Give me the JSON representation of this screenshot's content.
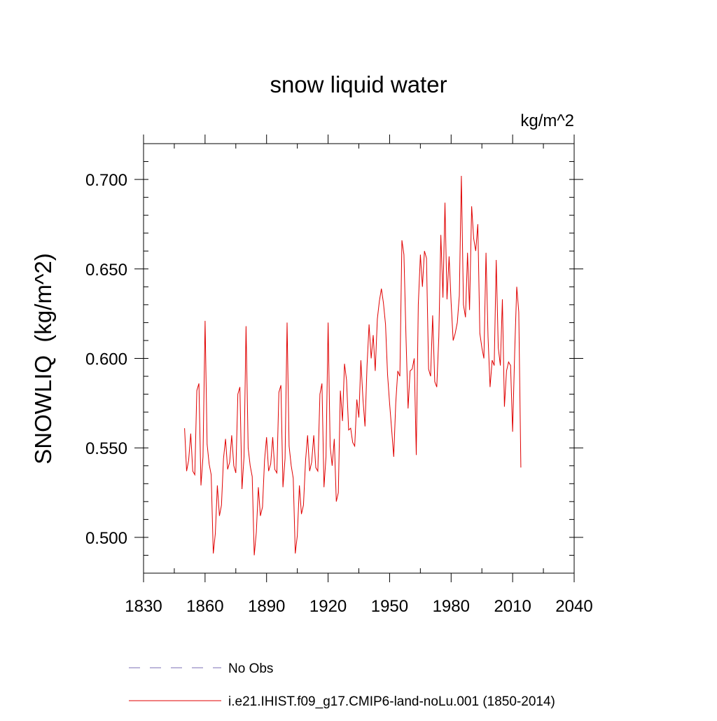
{
  "chart_data": {
    "type": "line",
    "title": "snow liquid water",
    "units_label": "kg/m^2",
    "ylabel": "SNOWLIQ  (kg/m^2)",
    "xlabel": "",
    "xlim": [
      1830,
      2040
    ],
    "ylim": [
      0.48,
      0.72
    ],
    "x_ticks": [
      1830,
      1860,
      1890,
      1920,
      1950,
      1980,
      2010,
      2040
    ],
    "x_tick_labels": [
      "1830",
      "1860",
      "1890",
      "1920",
      "1950",
      "1980",
      "2010",
      "2040"
    ],
    "y_ticks": [
      0.5,
      0.55,
      0.6,
      0.65,
      0.7
    ],
    "y_tick_labels": [
      "0.500",
      "0.550",
      "0.600",
      "0.650",
      "0.700"
    ],
    "grid": false,
    "legend_position": "bottom",
    "series": [
      {
        "name": "No Obs",
        "color": "#7b6fb5",
        "dash": "dashed",
        "x": [],
        "values": []
      },
      {
        "name": "i.e21.IHIST.f09_g17.CMIP6-land-noLu.001 (1850-2014)",
        "color": "#e00000",
        "dash": "solid",
        "x": [
          1850,
          1851,
          1852,
          1853,
          1854,
          1855,
          1856,
          1857,
          1858,
          1859,
          1860,
          1861,
          1862,
          1863,
          1864,
          1865,
          1866,
          1867,
          1868,
          1869,
          1870,
          1871,
          1872,
          1873,
          1874,
          1875,
          1876,
          1877,
          1878,
          1879,
          1880,
          1881,
          1882,
          1883,
          1884,
          1885,
          1886,
          1887,
          1888,
          1889,
          1890,
          1891,
          1892,
          1893,
          1894,
          1895,
          1896,
          1897,
          1898,
          1899,
          1900,
          1901,
          1902,
          1903,
          1904,
          1905,
          1906,
          1907,
          1908,
          1909,
          1910,
          1911,
          1912,
          1913,
          1914,
          1915,
          1916,
          1917,
          1918,
          1919,
          1920,
          1921,
          1922,
          1923,
          1924,
          1925,
          1926,
          1927,
          1928,
          1929,
          1930,
          1931,
          1932,
          1933,
          1934,
          1935,
          1936,
          1937,
          1938,
          1939,
          1940,
          1941,
          1942,
          1943,
          1944,
          1945,
          1946,
          1947,
          1948,
          1949,
          1950,
          1951,
          1952,
          1953,
          1954,
          1955,
          1956,
          1957,
          1958,
          1959,
          1960,
          1961,
          1962,
          1963,
          1964,
          1965,
          1966,
          1967,
          1968,
          1969,
          1970,
          1971,
          1972,
          1973,
          1974,
          1975,
          1976,
          1977,
          1978,
          1979,
          1980,
          1981,
          1982,
          1983,
          1984,
          1985,
          1986,
          1987,
          1988,
          1989,
          1990,
          1991,
          1992,
          1993,
          1994,
          1995,
          1996,
          1997,
          1998,
          1999,
          2000,
          2001,
          2002,
          2003,
          2004,
          2005,
          2006,
          2007,
          2008,
          2009,
          2010,
          2011,
          2012,
          2013,
          2014
        ],
        "values": [
          0.561,
          0.537,
          0.543,
          0.558,
          0.537,
          0.535,
          0.582,
          0.586,
          0.529,
          0.545,
          0.621,
          0.552,
          0.541,
          0.535,
          0.491,
          0.502,
          0.529,
          0.512,
          0.518,
          0.544,
          0.555,
          0.538,
          0.542,
          0.557,
          0.54,
          0.536,
          0.58,
          0.584,
          0.527,
          0.545,
          0.618,
          0.55,
          0.54,
          0.534,
          0.49,
          0.503,
          0.528,
          0.512,
          0.517,
          0.543,
          0.556,
          0.537,
          0.541,
          0.556,
          0.538,
          0.536,
          0.581,
          0.585,
          0.528,
          0.544,
          0.62,
          0.551,
          0.54,
          0.533,
          0.491,
          0.501,
          0.529,
          0.513,
          0.518,
          0.543,
          0.557,
          0.537,
          0.542,
          0.557,
          0.539,
          0.537,
          0.58,
          0.586,
          0.528,
          0.545,
          0.62,
          0.551,
          0.54,
          0.555,
          0.52,
          0.525,
          0.582,
          0.565,
          0.597,
          0.588,
          0.56,
          0.561,
          0.553,
          0.551,
          0.577,
          0.567,
          0.599,
          0.577,
          0.562,
          0.596,
          0.619,
          0.6,
          0.613,
          0.593,
          0.622,
          0.632,
          0.639,
          0.631,
          0.619,
          0.591,
          0.575,
          0.56,
          0.545,
          0.575,
          0.593,
          0.59,
          0.666,
          0.658,
          0.611,
          0.572,
          0.593,
          0.594,
          0.6,
          0.546,
          0.63,
          0.658,
          0.64,
          0.66,
          0.656,
          0.594,
          0.59,
          0.624,
          0.587,
          0.584,
          0.612,
          0.669,
          0.634,
          0.687,
          0.633,
          0.657,
          0.631,
          0.61,
          0.614,
          0.62,
          0.635,
          0.702,
          0.63,
          0.623,
          0.659,
          0.627,
          0.685,
          0.667,
          0.66,
          0.675,
          0.614,
          0.606,
          0.6,
          0.659,
          0.612,
          0.584,
          0.599,
          0.596,
          0.655,
          0.606,
          0.596,
          0.633,
          0.573,
          0.593,
          0.598,
          0.596,
          0.559,
          0.604,
          0.64,
          0.626,
          0.539
        ]
      }
    ]
  }
}
